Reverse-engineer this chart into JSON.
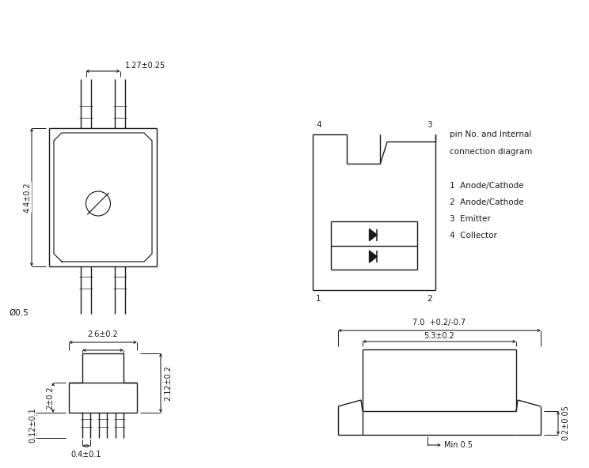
{
  "bg_color": "#ffffff",
  "line_color": "#1a1a1a",
  "lw": 1.0,
  "dlw": 0.7,
  "fs": 7.0,
  "dims": {
    "top_pin_spacing": "1.27±0.25",
    "body_height": "4.4±0.2",
    "pin_dia": "Ø0.5",
    "body_width_bottom": "2.6±0.2",
    "pin_width": "0.4±0.1",
    "foot_height": "2±0.2",
    "foot_width": "0.12±0.1",
    "total_height_bottom": "2.12±0.2",
    "smd_width": "7.0  +0.2/-0.7",
    "smd_inner": "5.3±0.2",
    "smd_min": "Min 0.5",
    "smd_height": "0.2±0.05"
  },
  "pin_labels": [
    [
      "1",
      "Anode/Cathode"
    ],
    [
      "2",
      "Anode/Cathode"
    ],
    [
      "3",
      "Emitter"
    ],
    [
      "4",
      "Collector"
    ]
  ],
  "pin_diagram_title_line1": "pin No. and Internal",
  "pin_diagram_title_line2": "connection diagram"
}
